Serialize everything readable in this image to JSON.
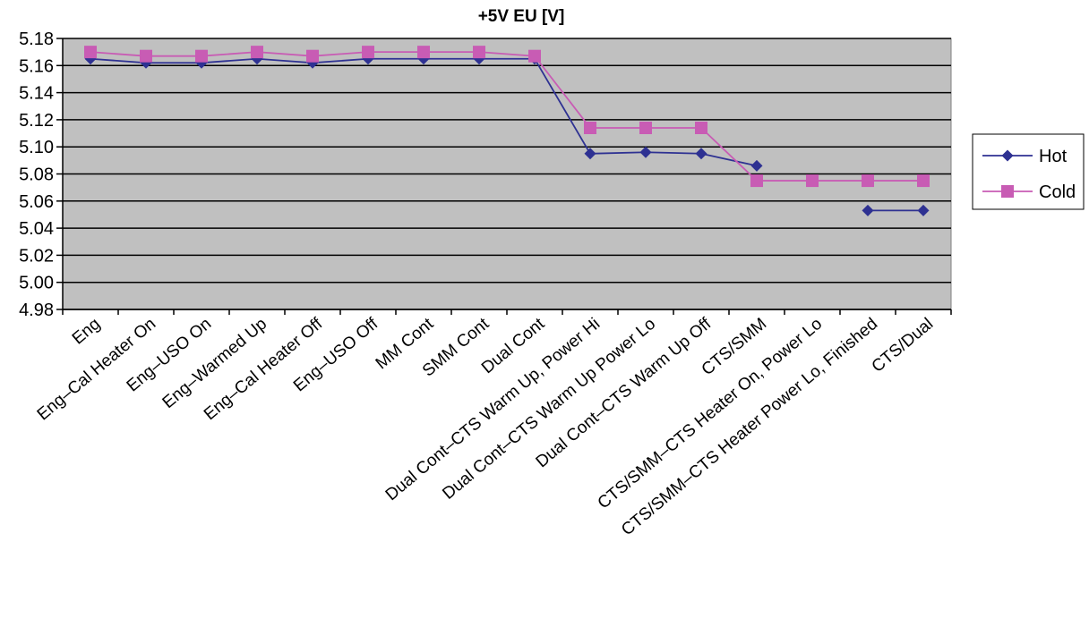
{
  "chart_data": {
    "type": "line",
    "title": "+5V EU [V]",
    "xlabel": "",
    "ylabel": "",
    "ylim": [
      4.98,
      5.18
    ],
    "ytick_step": 0.02,
    "yticks": [
      "5.18",
      "5.16",
      "5.14",
      "5.12",
      "5.10",
      "5.08",
      "5.06",
      "5.04",
      "5.02",
      "5.00",
      "4.98"
    ],
    "grid": true,
    "legend_position": "right",
    "categories": [
      "Eng",
      "Eng–Cal Heater On",
      "Eng–USO On",
      "Eng–Warmed Up",
      "Eng–Cal Heater Off",
      "Eng–USO Off",
      "MM Cont",
      "SMM Cont",
      "Dual Cont",
      "Dual Cont–CTS Warm Up, Power Hi",
      "Dual Cont–CTS Warm Up Power Lo",
      "Dual Cont–CTS Warm Up Off",
      "CTS/SMM",
      "CTS/SMM–CTS Heater On, Power Lo",
      "CTS/SMM–CTS Heater Power Lo, Finished",
      "CTS/Dual"
    ],
    "series": [
      {
        "name": "Hot",
        "marker": "diamond",
        "color": "#2e3192",
        "values": [
          5.165,
          5.162,
          5.162,
          5.165,
          5.162,
          5.165,
          5.165,
          5.165,
          5.165,
          5.095,
          5.096,
          5.095,
          5.086,
          null,
          5.053,
          5.053
        ]
      },
      {
        "name": "Cold",
        "marker": "square",
        "color": "#c85cb4",
        "values": [
          5.17,
          5.167,
          5.167,
          5.17,
          5.167,
          5.17,
          5.17,
          5.17,
          5.167,
          5.114,
          5.114,
          5.114,
          5.075,
          5.075,
          5.075,
          5.075
        ]
      }
    ],
    "plot_background": "#c0c0c0",
    "gridline_color": "#000000"
  }
}
